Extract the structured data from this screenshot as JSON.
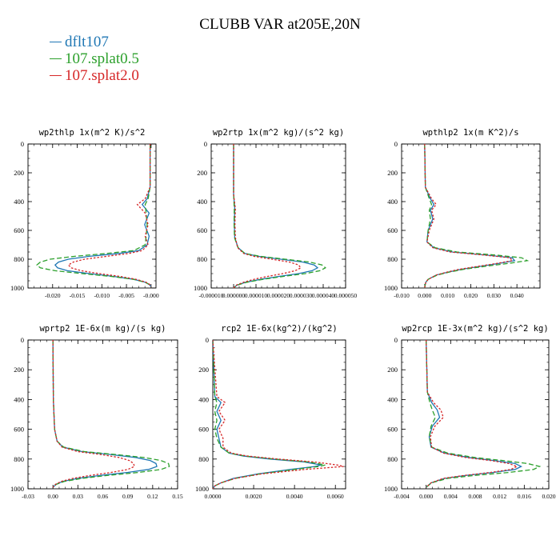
{
  "title": "CLUBB VAR at205E,20N",
  "legend": [
    {
      "label": "dflt107",
      "color": "#1f77b4"
    },
    {
      "label": "107.splat0.5",
      "color": "#2ca02c"
    },
    {
      "label": "107.splat2.0",
      "color": "#d62728"
    }
  ],
  "chart_data": [
    {
      "type": "line",
      "title": "wp2thlp  1x(m^2 K)/s^2",
      "xlim": [
        -0.025,
        0.001
      ],
      "xticks": [
        -0.02,
        -0.015,
        -0.01,
        -0.005,
        -0.0
      ],
      "xtick_labels": [
        "-0.020",
        "-0.015",
        "-0.010",
        "-0.005",
        "-0.000"
      ],
      "ylim": [
        1000,
        0
      ],
      "yticks": [
        0,
        200,
        400,
        600,
        800,
        1000
      ],
      "y": [
        0,
        300,
        380,
        420,
        480,
        560,
        640,
        700,
        740,
        760,
        780,
        800,
        820,
        840,
        860,
        880,
        900,
        920,
        940,
        960,
        975,
        990
      ],
      "series": [
        {
          "name": "dflt107",
          "values": [
            -0.0002,
            -0.0002,
            -0.0008,
            -0.0018,
            -0.0004,
            -0.0013,
            -0.0004,
            -0.0008,
            -0.0025,
            -0.0065,
            -0.0125,
            -0.0168,
            -0.0188,
            -0.0195,
            -0.019,
            -0.017,
            -0.0125,
            -0.0075,
            -0.0035,
            -0.0012,
            -0.0004,
            0.0
          ]
        },
        {
          "name": "107.splat0.5",
          "values": [
            -0.0002,
            -0.0002,
            -0.0006,
            -0.0012,
            -0.001,
            -0.0008,
            -0.001,
            -0.0012,
            -0.0035,
            -0.009,
            -0.0155,
            -0.0205,
            -0.0225,
            -0.0232,
            -0.0225,
            -0.0195,
            -0.014,
            -0.008,
            -0.0035,
            -0.0012,
            -0.0004,
            0.0
          ]
        },
        {
          "name": "107.splat2.0",
          "values": [
            -0.0002,
            -0.0002,
            -0.0012,
            -0.0028,
            -0.0012,
            -0.0006,
            -0.0012,
            -0.0006,
            -0.0018,
            -0.0045,
            -0.009,
            -0.0135,
            -0.0158,
            -0.0168,
            -0.0162,
            -0.0142,
            -0.0105,
            -0.0062,
            -0.003,
            -0.001,
            -0.0003,
            0.0
          ]
        }
      ]
    },
    {
      "type": "line",
      "title": "wp2rtp  1x(m^2 kg)/(s^2 kg)",
      "xlim": [
        -1e-05,
        5e-05
      ],
      "xticks": [
        -1e-05,
        0.0,
        1e-05,
        2e-05,
        3e-05,
        4e-05,
        5e-05
      ],
      "xtick_labels": [
        "-0.000010",
        "0.000000",
        "0.000010",
        "0.000020",
        "0.000030",
        "0.000040",
        "0.000050"
      ],
      "ylim": [
        1000,
        0
      ],
      "yticks": [
        0,
        200,
        400,
        600,
        800,
        1000
      ],
      "y": [
        0,
        350,
        450,
        550,
        650,
        720,
        760,
        780,
        800,
        820,
        840,
        860,
        880,
        900,
        920,
        940,
        960,
        980,
        1000
      ],
      "series": [
        {
          "name": "dflt107",
          "values": [
            0.0,
            0.0,
            5e-07,
            3e-07,
            5e-07,
            2e-06,
            5e-06,
            1.1e-05,
            2.1e-05,
            3.1e-05,
            3.6e-05,
            3.75e-05,
            3.5e-05,
            2.9e-05,
            2e-05,
            1.2e-05,
            5.5e-06,
            1.5e-06,
            0.0
          ]
        },
        {
          "name": "107.splat0.5",
          "values": [
            0.0,
            0.0,
            3e-07,
            2e-07,
            4e-07,
            2e-06,
            5e-06,
            1.2e-05,
            2.3e-05,
            3.4e-05,
            3.95e-05,
            4.1e-05,
            3.85e-05,
            3.2e-05,
            2.2e-05,
            1.3e-05,
            6e-06,
            1.5e-06,
            0.0
          ]
        },
        {
          "name": "107.splat2.0",
          "values": [
            0.0,
            0.0,
            8e-07,
            6e-07,
            8e-07,
            1.8e-06,
            4.5e-06,
            9e-06,
            1.7e-05,
            2.5e-05,
            2.9e-05,
            3e-05,
            2.75e-05,
            2.2e-05,
            1.5e-05,
            9e-06,
            4.5e-06,
            1.2e-06,
            0.0
          ]
        }
      ]
    },
    {
      "type": "line",
      "title": "wpthlp2  1x(m K^2)/s",
      "xlim": [
        -0.01,
        0.05
      ],
      "xticks": [
        -0.01,
        0.0,
        0.01,
        0.02,
        0.03,
        0.04
      ],
      "xtick_labels": [
        "-0.010",
        "0.000",
        "0.010",
        "0.020",
        "0.030",
        "0.040"
      ],
      "ylim": [
        1000,
        0
      ],
      "yticks": [
        0,
        200,
        400,
        600,
        800,
        1000
      ],
      "y": [
        0,
        300,
        380,
        420,
        460,
        520,
        600,
        680,
        720,
        750,
        770,
        790,
        810,
        830,
        850,
        870,
        890,
        910,
        940,
        960,
        980,
        1000
      ],
      "series": [
        {
          "name": "dflt107",
          "values": [
            0.0,
            0.0003,
            0.0025,
            0.004,
            0.0025,
            0.0035,
            0.0015,
            0.001,
            0.004,
            0.012,
            0.026,
            0.038,
            0.039,
            0.032,
            0.024,
            0.016,
            0.01,
            0.005,
            0.0015,
            0.0005,
            0.0002,
            0.0
          ]
        },
        {
          "name": "107.splat0.5",
          "values": [
            0.0,
            0.0003,
            0.002,
            0.003,
            0.002,
            0.0025,
            0.0015,
            0.001,
            0.0045,
            0.014,
            0.03,
            0.042,
            0.0445,
            0.036,
            0.026,
            0.017,
            0.0105,
            0.0055,
            0.0015,
            0.0005,
            0.0002,
            0.0
          ]
        },
        {
          "name": "107.splat2.0",
          "values": [
            0.0,
            0.0003,
            0.003,
            0.005,
            0.003,
            0.004,
            0.002,
            0.001,
            0.0035,
            0.011,
            0.025,
            0.037,
            0.038,
            0.031,
            0.023,
            0.015,
            0.0095,
            0.005,
            0.0015,
            0.0005,
            0.0002,
            0.0
          ]
        }
      ]
    },
    {
      "type": "line",
      "title": "wprtp2  1E-6x(m kg)/(s kg)",
      "xlim": [
        -0.03,
        0.15
      ],
      "xticks": [
        -0.03,
        0.0,
        0.03,
        0.06,
        0.09,
        0.12,
        0.15
      ],
      "xtick_labels": [
        "-0.03",
        "0.00",
        "0.03",
        "0.06",
        "0.09",
        "0.12",
        "0.15"
      ],
      "ylim": [
        1000,
        0
      ],
      "yticks": [
        0,
        200,
        400,
        600,
        800,
        1000
      ],
      "y": [
        0,
        400,
        600,
        680,
        720,
        750,
        770,
        790,
        810,
        830,
        850,
        870,
        890,
        910,
        930,
        950,
        970,
        990
      ],
      "series": [
        {
          "name": "dflt107",
          "values": [
            0.0,
            0.0005,
            0.002,
            0.005,
            0.012,
            0.035,
            0.07,
            0.1,
            0.117,
            0.124,
            0.125,
            0.115,
            0.09,
            0.057,
            0.03,
            0.012,
            0.004,
            0.0
          ]
        },
        {
          "name": "107.splat0.5",
          "values": [
            0.0,
            0.0005,
            0.002,
            0.005,
            0.013,
            0.038,
            0.076,
            0.11,
            0.13,
            0.139,
            0.14,
            0.13,
            0.103,
            0.066,
            0.035,
            0.014,
            0.004,
            0.0
          ]
        },
        {
          "name": "107.splat2.0",
          "values": [
            0.0,
            0.0005,
            0.002,
            0.005,
            0.011,
            0.03,
            0.058,
            0.08,
            0.092,
            0.097,
            0.098,
            0.09,
            0.07,
            0.045,
            0.024,
            0.01,
            0.003,
            0.0
          ]
        }
      ]
    },
    {
      "type": "line",
      "title": "rcp2  1E-6x(kg^2)/(kg^2)",
      "xlim": [
        0.0,
        0.0065
      ],
      "xticks": [
        0.0,
        0.002,
        0.004,
        0.006
      ],
      "xtick_labels": [
        "0.0000",
        "0.0020",
        "0.0040",
        "0.0060"
      ],
      "ylim": [
        1000,
        0
      ],
      "yticks": [
        0,
        200,
        400,
        600,
        800,
        1000
      ],
      "y": [
        0,
        380,
        420,
        480,
        540,
        600,
        660,
        720,
        760,
        780,
        800,
        820,
        840,
        850,
        870,
        900,
        930,
        960,
        980,
        1000
      ],
      "series": [
        {
          "name": "dflt107",
          "values": [
            0.0,
            0.0001,
            0.0004,
            0.0002,
            0.0004,
            0.0002,
            0.0003,
            0.0004,
            0.0008,
            0.0015,
            0.0028,
            0.0045,
            0.0053,
            0.005,
            0.0038,
            0.0022,
            0.001,
            0.0004,
            0.0001,
            0.0
          ]
        },
        {
          "name": "107.splat0.5",
          "values": [
            0.0,
            0.0001,
            0.0002,
            0.0001,
            0.0002,
            0.0001,
            0.0002,
            0.0004,
            0.0008,
            0.0016,
            0.003,
            0.0047,
            0.0055,
            0.0052,
            0.004,
            0.0023,
            0.0011,
            0.0004,
            0.0001,
            0.0
          ]
        },
        {
          "name": "107.splat2.0",
          "values": [
            0.0,
            0.0002,
            0.0006,
            0.0003,
            0.0006,
            0.0003,
            0.0005,
            0.0005,
            0.0009,
            0.0017,
            0.0032,
            0.005,
            0.0061,
            0.0064,
            0.0045,
            0.0024,
            0.0011,
            0.0004,
            0.0001,
            0.0
          ]
        }
      ]
    },
    {
      "type": "line",
      "title": "wp2rcp  1E-3x(m^2 kg)/(s^2 kg)",
      "xlim": [
        -0.004,
        0.02
      ],
      "xticks": [
        -0.004,
        0.0,
        0.004,
        0.008,
        0.012,
        0.016,
        0.02
      ],
      "xtick_labels": [
        "-0.004",
        "0.000",
        "0.004",
        "0.008",
        "0.012",
        "0.016",
        "0.020"
      ],
      "ylim": [
        1000,
        0
      ],
      "yticks": [
        0,
        200,
        400,
        600,
        800,
        1000
      ],
      "y": [
        0,
        350,
        420,
        470,
        520,
        580,
        650,
        720,
        760,
        790,
        810,
        830,
        850,
        870,
        890,
        910,
        930,
        960,
        990
      ],
      "series": [
        {
          "name": "dflt107",
          "values": [
            0.0,
            0.0002,
            0.0009,
            0.0018,
            0.0022,
            0.001,
            0.0005,
            0.0008,
            0.003,
            0.007,
            0.011,
            0.0145,
            0.0155,
            0.0145,
            0.011,
            0.0065,
            0.003,
            0.0008,
            0.0
          ]
        },
        {
          "name": "107.splat0.5",
          "values": [
            0.0,
            0.0002,
            0.0006,
            0.001,
            0.0015,
            0.0008,
            0.0005,
            0.0009,
            0.0035,
            0.008,
            0.0125,
            0.0165,
            0.0185,
            0.0175,
            0.0135,
            0.008,
            0.0035,
            0.0009,
            0.0
          ]
        },
        {
          "name": "107.splat2.0",
          "values": [
            0.0,
            0.0002,
            0.0012,
            0.0024,
            0.0028,
            0.0014,
            0.0007,
            0.0009,
            0.0028,
            0.0065,
            0.0105,
            0.0135,
            0.0148,
            0.0138,
            0.0105,
            0.0062,
            0.0028,
            0.0008,
            0.0
          ]
        }
      ]
    }
  ]
}
